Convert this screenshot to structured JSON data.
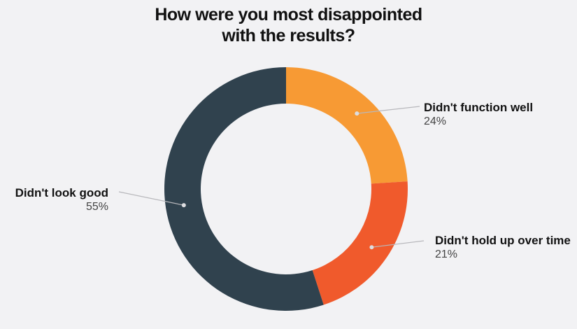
{
  "chart_data": {
    "type": "pie",
    "title_lines": [
      "How were you most disappointed",
      "with the results?"
    ],
    "slices": [
      {
        "label": "Didn't function well",
        "value": 24,
        "value_text": "24%",
        "color": "#f79a34"
      },
      {
        "label": "Didn't hold up over time",
        "value": 21,
        "value_text": "21%",
        "color": "#f05a2c"
      },
      {
        "label": "Didn't look good",
        "value": 55,
        "value_text": "55%",
        "color": "#30424e"
      }
    ],
    "donut": true,
    "start_angle": "12 o'clock",
    "direction": "clockwise",
    "background_color": "#f2f2f4",
    "leader_line_color": "#b8b8bc"
  }
}
